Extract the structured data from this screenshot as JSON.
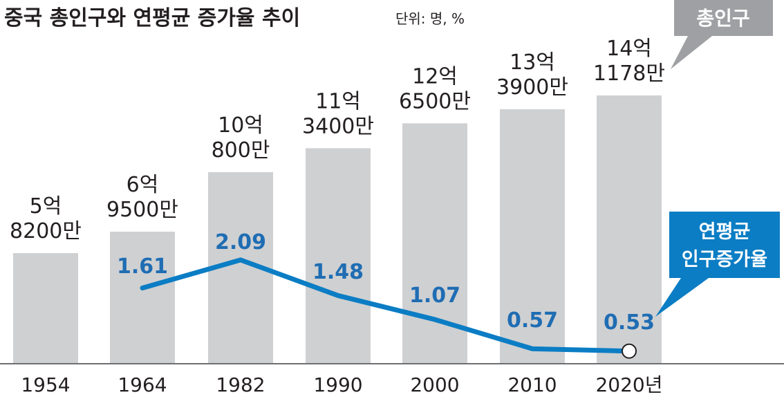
{
  "colors": {
    "bar": "#cfd0d2",
    "line": "#0b7dc4",
    "rate_label": "#1f6db3",
    "text": "#231f20",
    "axis": "#6d6e71",
    "pop_callout_bg": "#9ea0a3",
    "rate_callout_bg": "#0b7dc4",
    "callout_text": "#ffffff",
    "marker_fill": "#ffffff"
  },
  "chart_data": {
    "type": "bar",
    "title": "중국 총인구와 연평균 증가율 추이",
    "unit_note": "단위: 명, %",
    "categories": [
      "1954",
      "1964",
      "1982",
      "1990",
      "2000",
      "2010",
      "2020년"
    ],
    "series": [
      {
        "name": "총인구",
        "kind": "bar",
        "values": [
          582000000,
          695000000,
          1008000000,
          1134000000,
          1265000000,
          1339000000,
          1411780000
        ],
        "labels": [
          [
            "5억",
            "8200만"
          ],
          [
            "6억",
            "9500만"
          ],
          [
            "10억",
            "800만"
          ],
          [
            "11억",
            "3400만"
          ],
          [
            "12억",
            "6500만"
          ],
          [
            "13억",
            "3900만"
          ],
          [
            "14억",
            "1178만"
          ]
        ]
      },
      {
        "name": "연평균 인구증가율",
        "kind": "line",
        "values": [
          null,
          1.61,
          2.09,
          1.48,
          1.07,
          0.57,
          0.53
        ],
        "labels": [
          "",
          "1.61",
          "2.09",
          "1.48",
          "1.07",
          "0.57",
          "0.53"
        ]
      }
    ],
    "callouts": {
      "population": "총인구",
      "rate": [
        "연평균",
        "인구증가율"
      ]
    }
  }
}
